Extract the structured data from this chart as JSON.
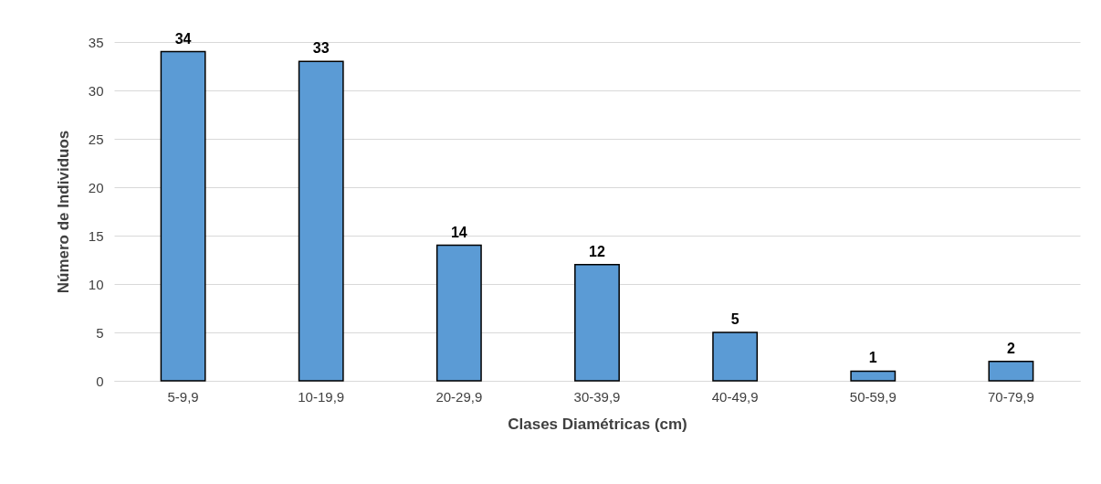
{
  "chart_data": {
    "type": "bar",
    "xlabel": "Clases Diamétricas (cm)",
    "ylabel": "Número de Individuos",
    "categories": [
      "5-9,9",
      "10-19,9",
      "20-29,9",
      "30-39,9",
      "40-49,9",
      "50-59,9",
      "70-79,9"
    ],
    "values": [
      34,
      33,
      14,
      12,
      5,
      1,
      2
    ],
    "color": "#5b9bd5",
    "ylim": [
      0,
      35
    ],
    "yticks": [
      0,
      5,
      10,
      15,
      20,
      25,
      30,
      35
    ],
    "grid": "y",
    "data_labels": true
  }
}
